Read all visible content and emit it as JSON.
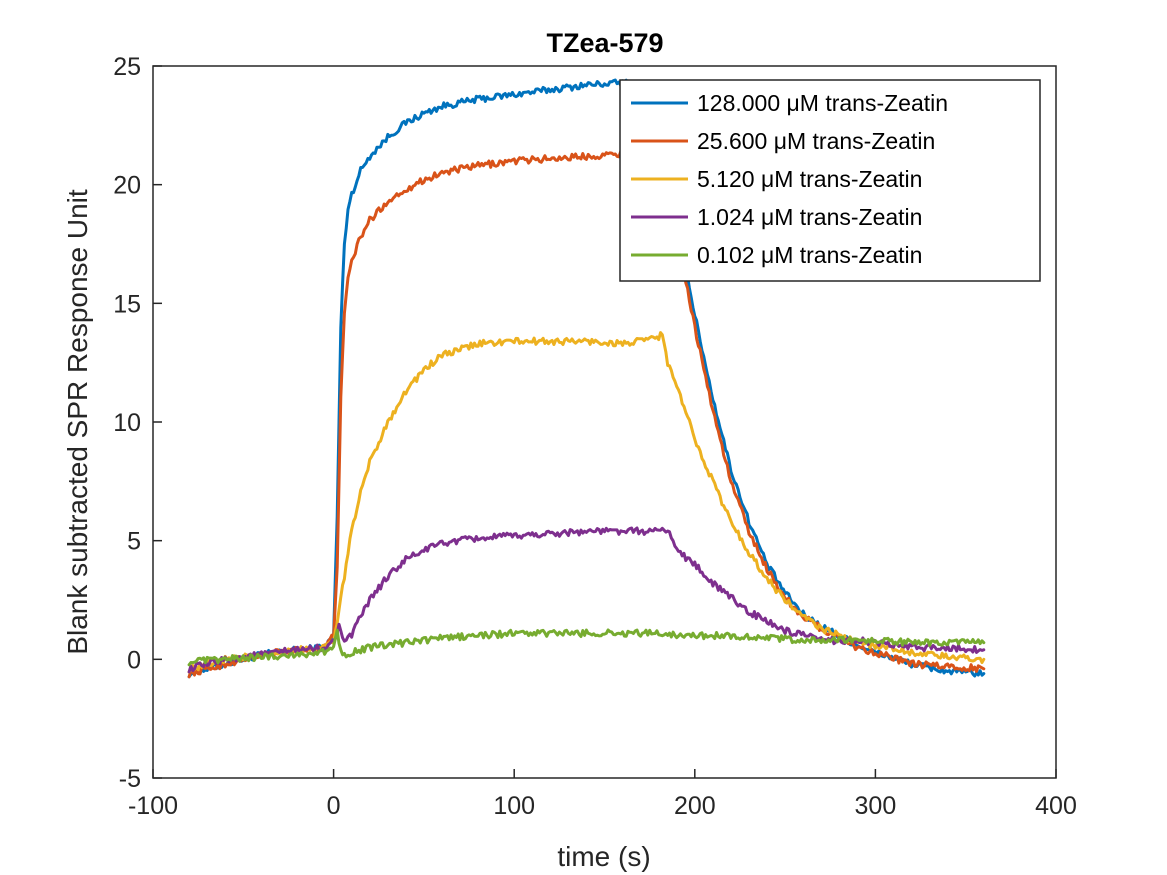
{
  "chart_data": {
    "type": "line",
    "title": "TZea-579",
    "xlabel": "time (s)",
    "ylabel": "Blank subtracted SPR Response Unit",
    "xlim": [
      -100,
      400
    ],
    "ylim": [
      -5,
      25
    ],
    "xticks": [
      -100,
      0,
      100,
      200,
      300,
      400
    ],
    "yticks": [
      -5,
      0,
      5,
      10,
      15,
      20,
      25
    ],
    "x_tick_labels": [
      "-100",
      "0",
      "100",
      "200",
      "300",
      "400"
    ],
    "y_tick_labels": [
      "-5",
      "0",
      "5",
      "10",
      "15",
      "20",
      "25"
    ],
    "grid": false,
    "legend_position": "top-right",
    "series": [
      {
        "name": "128.000 μM trans-Zeatin",
        "color": "#0072BD",
        "x": [
          -80,
          -60,
          -40,
          -20,
          -5,
          0,
          2,
          4,
          6,
          8,
          10,
          15,
          20,
          30,
          40,
          50,
          60,
          80,
          100,
          120,
          140,
          160,
          170,
          180,
          185,
          190,
          195,
          200,
          210,
          220,
          230,
          240,
          250,
          260,
          270,
          280,
          290,
          300,
          320,
          340,
          360
        ],
        "y": [
          -0.6,
          -0.2,
          0.2,
          0.4,
          0.5,
          1.0,
          6.0,
          14.0,
          17.5,
          19.0,
          19.6,
          20.6,
          21.2,
          22.0,
          22.6,
          23.0,
          23.3,
          23.6,
          23.8,
          24.0,
          24.2,
          24.3,
          24.2,
          24.0,
          23.0,
          20.0,
          16.5,
          14.5,
          11.0,
          8.0,
          5.8,
          4.0,
          2.8,
          1.9,
          1.4,
          1.0,
          0.6,
          0.3,
          -0.2,
          -0.5,
          -0.6
        ]
      },
      {
        "name": "25.600 μM trans-Zeatin",
        "color": "#D95319",
        "x": [
          -80,
          -60,
          -40,
          -20,
          -5,
          0,
          2,
          4,
          6,
          8,
          10,
          15,
          20,
          30,
          40,
          50,
          60,
          80,
          100,
          120,
          140,
          160,
          170,
          180,
          185,
          190,
          195,
          200,
          210,
          220,
          230,
          240,
          250,
          260,
          270,
          280,
          290,
          300,
          320,
          340,
          360
        ],
        "y": [
          -0.6,
          -0.2,
          0.2,
          0.4,
          0.5,
          1.0,
          4.0,
          11.0,
          14.5,
          16.0,
          16.8,
          17.8,
          18.5,
          19.3,
          19.8,
          20.2,
          20.5,
          20.8,
          21.0,
          21.1,
          21.2,
          21.3,
          21.4,
          21.4,
          20.5,
          18.5,
          16.0,
          14.0,
          10.5,
          7.5,
          5.4,
          3.8,
          2.6,
          1.8,
          1.3,
          0.9,
          0.5,
          0.3,
          -0.2,
          -0.3,
          -0.4
        ]
      },
      {
        "name": "5.120 μM trans-Zeatin",
        "color": "#EDB120",
        "x": [
          -80,
          -60,
          -40,
          -20,
          -5,
          0,
          2,
          4,
          6,
          8,
          10,
          15,
          20,
          30,
          40,
          50,
          60,
          80,
          100,
          120,
          140,
          160,
          170,
          180,
          182,
          185,
          190,
          200,
          210,
          220,
          230,
          240,
          250,
          260,
          270,
          280,
          290,
          300,
          320,
          340,
          360
        ],
        "y": [
          -0.4,
          0.0,
          0.2,
          0.4,
          0.5,
          0.8,
          1.5,
          2.5,
          3.5,
          4.5,
          5.5,
          7.0,
          8.3,
          10.0,
          11.3,
          12.2,
          12.8,
          13.3,
          13.4,
          13.4,
          13.4,
          13.3,
          13.4,
          13.6,
          13.7,
          12.5,
          11.5,
          9.3,
          7.5,
          5.8,
          4.5,
          3.4,
          2.5,
          1.8,
          1.3,
          1.0,
          0.7,
          0.6,
          0.3,
          0.1,
          0.0
        ]
      },
      {
        "name": "1.024 μM trans-Zeatin",
        "color": "#7E2F8E",
        "x": [
          -80,
          -60,
          -40,
          -20,
          -5,
          0,
          3,
          6,
          10,
          15,
          20,
          30,
          40,
          50,
          60,
          80,
          100,
          120,
          140,
          160,
          170,
          180,
          185,
          190,
          200,
          210,
          220,
          230,
          240,
          250,
          260,
          270,
          280,
          290,
          300,
          320,
          340,
          360
        ],
        "y": [
          -0.4,
          0.0,
          0.2,
          0.4,
          0.5,
          0.7,
          1.5,
          0.8,
          1.0,
          1.8,
          2.5,
          3.5,
          4.2,
          4.6,
          4.9,
          5.1,
          5.2,
          5.3,
          5.4,
          5.4,
          5.4,
          5.4,
          5.5,
          4.6,
          4.0,
          3.2,
          2.6,
          2.0,
          1.6,
          1.2,
          1.0,
          0.8,
          0.8,
          0.8,
          0.7,
          0.5,
          0.5,
          0.4
        ]
      },
      {
        "name": "0.102 μM trans-Zeatin",
        "color": "#77AC30",
        "x": [
          -80,
          -60,
          -40,
          -20,
          -5,
          0,
          2,
          4,
          6,
          10,
          20,
          40,
          60,
          80,
          100,
          120,
          140,
          160,
          180,
          200,
          220,
          240,
          260,
          280,
          300,
          320,
          340,
          360
        ],
        "y": [
          -0.1,
          0.0,
          0.1,
          0.2,
          0.3,
          0.5,
          1.2,
          0.4,
          0.2,
          0.3,
          0.5,
          0.7,
          0.9,
          1.0,
          1.1,
          1.1,
          1.1,
          1.1,
          1.1,
          1.0,
          1.0,
          0.9,
          0.8,
          0.8,
          0.8,
          0.7,
          0.7,
          0.7
        ]
      }
    ]
  }
}
